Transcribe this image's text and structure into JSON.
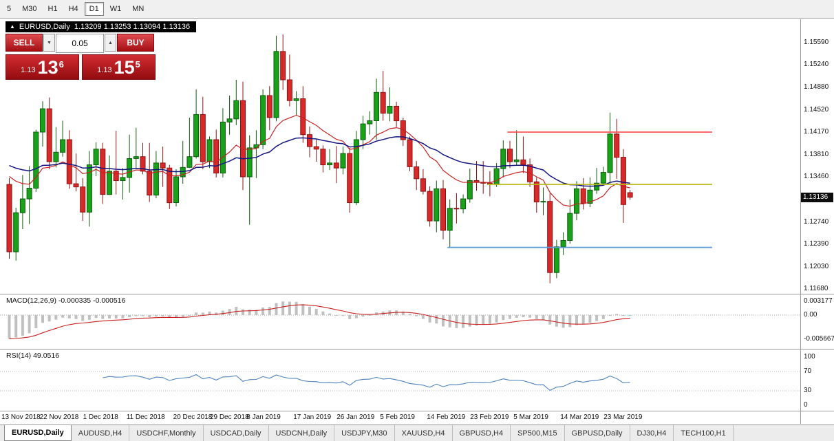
{
  "toolbar": {
    "timeframes": [
      {
        "label": "5",
        "active": false
      },
      {
        "label": "M30",
        "active": false
      },
      {
        "label": "H1",
        "active": false
      },
      {
        "label": "H4",
        "active": false
      },
      {
        "label": "D1",
        "active": true
      },
      {
        "label": "W1",
        "active": false
      },
      {
        "label": "MN",
        "active": false
      }
    ]
  },
  "chart": {
    "title_symbol": "EURUSD,Daily",
    "title_ohlc": "1.13209 1.13253 1.13094 1.13136"
  },
  "trade_panel": {
    "sell_label": "SELL",
    "buy_label": "BUY",
    "volume": "0.05",
    "sell_price": {
      "prefix": "1.13",
      "big": "13",
      "sup": "6"
    },
    "buy_price": {
      "prefix": "1.13",
      "big": "15",
      "sup": "5"
    }
  },
  "price_axis": {
    "current": "1.13136"
  },
  "macd": {
    "label": "MACD(12,26,9) -0.000335 -0.000516",
    "params": [
      12,
      26,
      9
    ],
    "axis": [
      "0.003177",
      "0.00",
      "-0.005667"
    ],
    "histogram_color": "#c0c0c0",
    "signal_color": "#c82020"
  },
  "rsi": {
    "label": "RSI(14) 49.0516",
    "period": 14,
    "value": 49.0516,
    "axis": [
      "100",
      "70",
      "30",
      "0"
    ],
    "levels": [
      70,
      30
    ],
    "line_color": "#4f81bd"
  },
  "tabs": [
    {
      "label": "EURUSD,Daily",
      "active": true
    },
    {
      "label": "AUDUSD,H4",
      "active": false
    },
    {
      "label": "USDCHF,Monthly",
      "active": false
    },
    {
      "label": "USDCAD,Daily",
      "active": false
    },
    {
      "label": "USDCNH,Daily",
      "active": false
    },
    {
      "label": "USDJPY,M30",
      "active": false
    },
    {
      "label": "XAUUSD,H4",
      "active": false
    },
    {
      "label": "GBPUSD,H4",
      "active": false
    },
    {
      "label": "SP500,M15",
      "active": false
    },
    {
      "label": "GBPUSD,Daily",
      "active": false
    },
    {
      "label": "DJ30,H4",
      "active": false
    },
    {
      "label": "TECH100,H1",
      "active": false
    }
  ],
  "chart_data": {
    "type": "candlestick",
    "symbol": "EURUSD",
    "period": "Daily",
    "ylim": [
      1.1168,
      1.1559
    ],
    "y_ticks": [
      "1.15590",
      "1.15240",
      "1.14880",
      "1.14520",
      "1.14170",
      "1.13810",
      "1.13460",
      "1.13100",
      "1.12740",
      "1.12390",
      "1.12030",
      "1.11680"
    ],
    "x_ticks": [
      {
        "label": "13 Nov 2018",
        "index": 1
      },
      {
        "label": "22 Nov 2018",
        "index": 8
      },
      {
        "label": "1 Dec 2018",
        "index": 14.5
      },
      {
        "label": "11 Dec 2018",
        "index": 21
      },
      {
        "label": "20 Dec 2018",
        "index": 28
      },
      {
        "label": "29 Dec 2018",
        "index": 33.5
      },
      {
        "label": "8 Jan 2019",
        "index": 39
      },
      {
        "label": "17 Jan 2019",
        "index": 46
      },
      {
        "label": "26 Jan 2019",
        "index": 52.5
      },
      {
        "label": "5 Feb 2019",
        "index": 59
      },
      {
        "label": "14 Feb 2019",
        "index": 66
      },
      {
        "label": "23 Feb 2019",
        "index": 72.5
      },
      {
        "label": "5 Mar 2019",
        "index": 79
      },
      {
        "label": "14 Mar 2019",
        "index": 86
      },
      {
        "label": "23 Mar 2019",
        "index": 92.5
      }
    ],
    "colors": {
      "up": {
        "body": "#19a119",
        "border": "#0b5d0b"
      },
      "down": {
        "body": "#d62929",
        "border": "#8f1010"
      }
    },
    "moving_averages": [
      {
        "name": "ma-fast",
        "period": 14,
        "color": "#c82020"
      },
      {
        "name": "ma-slow",
        "period": 35,
        "color": "#151580"
      }
    ],
    "hlines": [
      {
        "name": "resistance-hline",
        "price": 1.1417,
        "color": "#ff5252",
        "from_index": 75
      },
      {
        "name": "pivot-hline",
        "price": 1.1334,
        "color": "#b9b918",
        "from_index": 72
      },
      {
        "name": "support-hline",
        "price": 1.1234,
        "color": "#5b9bd5",
        "from_index": 66
      }
    ],
    "candles": [
      [
        1.1334,
        1.1344,
        1.1216,
        1.1227
      ],
      [
        1.1227,
        1.1297,
        1.1213,
        1.1289
      ],
      [
        1.1289,
        1.1349,
        1.1263,
        1.1311
      ],
      [
        1.1311,
        1.1363,
        1.1271,
        1.1328
      ],
      [
        1.1328,
        1.1421,
        1.1322,
        1.1417
      ],
      [
        1.1417,
        1.1466,
        1.1394,
        1.1454
      ],
      [
        1.1454,
        1.1472,
        1.1358,
        1.137
      ],
      [
        1.137,
        1.1425,
        1.1361,
        1.1385
      ],
      [
        1.1385,
        1.1435,
        1.1378,
        1.1405
      ],
      [
        1.1405,
        1.142,
        1.1327,
        1.1335
      ],
      [
        1.1335,
        1.1383,
        1.1323,
        1.133
      ],
      [
        1.133,
        1.1344,
        1.1276,
        1.129
      ],
      [
        1.129,
        1.1387,
        1.1267,
        1.1365
      ],
      [
        1.1365,
        1.1401,
        1.1347,
        1.139
      ],
      [
        1.139,
        1.14,
        1.1303,
        1.1318
      ],
      [
        1.1318,
        1.138,
        1.1318,
        1.1355
      ],
      [
        1.1355,
        1.1419,
        1.1318,
        1.134
      ],
      [
        1.134,
        1.136,
        1.131,
        1.1345
      ],
      [
        1.1345,
        1.1413,
        1.1321,
        1.1375
      ],
      [
        1.1375,
        1.1424,
        1.136,
        1.1378
      ],
      [
        1.1378,
        1.14,
        1.135,
        1.1355
      ],
      [
        1.1355,
        1.14,
        1.1306,
        1.1317
      ],
      [
        1.1317,
        1.1387,
        1.1312,
        1.1368
      ],
      [
        1.1368,
        1.1394,
        1.133,
        1.136
      ],
      [
        1.136,
        1.1365,
        1.1295,
        1.1305
      ],
      [
        1.1305,
        1.1358,
        1.1299,
        1.1346
      ],
      [
        1.1346,
        1.1403,
        1.1335,
        1.1361
      ],
      [
        1.1361,
        1.144,
        1.136,
        1.1378
      ],
      [
        1.1378,
        1.1485,
        1.1375,
        1.1445
      ],
      [
        1.1445,
        1.1473,
        1.1358,
        1.137
      ],
      [
        1.137,
        1.141,
        1.136,
        1.1405
      ],
      [
        1.1405,
        1.1421,
        1.1345,
        1.1352
      ],
      [
        1.1352,
        1.1455,
        1.1345,
        1.1433
      ],
      [
        1.1433,
        1.1475,
        1.1413,
        1.1438
      ],
      [
        1.1438,
        1.15,
        1.1428,
        1.1467
      ],
      [
        1.1467,
        1.1497,
        1.1325,
        1.1346
      ],
      [
        1.1346,
        1.1412,
        1.127,
        1.1392
      ],
      [
        1.1392,
        1.142,
        1.1344,
        1.1397
      ],
      [
        1.1397,
        1.1485,
        1.139,
        1.1475
      ],
      [
        1.1475,
        1.149,
        1.142,
        1.144
      ],
      [
        1.144,
        1.157,
        1.1434,
        1.1545
      ],
      [
        1.1545,
        1.1572,
        1.1484,
        1.15
      ],
      [
        1.15,
        1.154,
        1.1458,
        1.1467
      ],
      [
        1.1467,
        1.1482,
        1.1444,
        1.147
      ],
      [
        1.147,
        1.149,
        1.14,
        1.1413
      ],
      [
        1.1413,
        1.1426,
        1.1377,
        1.1394
      ],
      [
        1.1394,
        1.1405,
        1.137,
        1.139
      ],
      [
        1.139,
        1.1396,
        1.1353,
        1.1365
      ],
      [
        1.1365,
        1.139,
        1.1357,
        1.1368
      ],
      [
        1.1368,
        1.1395,
        1.1336,
        1.136
      ],
      [
        1.136,
        1.1394,
        1.135,
        1.1383
      ],
      [
        1.1383,
        1.1392,
        1.1289,
        1.1305
      ],
      [
        1.1305,
        1.1419,
        1.1301,
        1.1405
      ],
      [
        1.1405,
        1.1443,
        1.139,
        1.143
      ],
      [
        1.143,
        1.145,
        1.1413,
        1.1435
      ],
      [
        1.1435,
        1.1502,
        1.1405,
        1.148
      ],
      [
        1.148,
        1.1514,
        1.1435,
        1.1447
      ],
      [
        1.1447,
        1.1488,
        1.1434,
        1.1458
      ],
      [
        1.1458,
        1.1465,
        1.1425,
        1.1435
      ],
      [
        1.1435,
        1.144,
        1.1395,
        1.1405
      ],
      [
        1.1405,
        1.141,
        1.1355,
        1.1362
      ],
      [
        1.1362,
        1.1371,
        1.1325,
        1.1343
      ],
      [
        1.1343,
        1.1358,
        1.1318,
        1.1323
      ],
      [
        1.1323,
        1.1331,
        1.1267,
        1.1276
      ],
      [
        1.1276,
        1.134,
        1.1258,
        1.1327
      ],
      [
        1.1327,
        1.1341,
        1.1247,
        1.1261
      ],
      [
        1.1261,
        1.131,
        1.1234,
        1.1296
      ],
      [
        1.1296,
        1.132,
        1.1272,
        1.1295
      ],
      [
        1.1295,
        1.1318,
        1.1288,
        1.1311
      ],
      [
        1.1311,
        1.1359,
        1.1305,
        1.134
      ],
      [
        1.134,
        1.1371,
        1.1324,
        1.1337
      ],
      [
        1.1337,
        1.1371,
        1.1319,
        1.1336
      ],
      [
        1.1336,
        1.1355,
        1.1315,
        1.1334
      ],
      [
        1.1334,
        1.1368,
        1.133,
        1.1359
      ],
      [
        1.1359,
        1.1404,
        1.1345,
        1.139
      ],
      [
        1.139,
        1.1403,
        1.136,
        1.137
      ],
      [
        1.137,
        1.142,
        1.1365,
        1.1373
      ],
      [
        1.1373,
        1.141,
        1.1352,
        1.1365
      ],
      [
        1.1365,
        1.1375,
        1.133,
        1.1338
      ],
      [
        1.1338,
        1.1345,
        1.1289,
        1.1306
      ],
      [
        1.1306,
        1.1329,
        1.1285,
        1.1307
      ],
      [
        1.1307,
        1.132,
        1.1177,
        1.1194
      ],
      [
        1.1194,
        1.1246,
        1.1185,
        1.1235
      ],
      [
        1.1235,
        1.1258,
        1.1222,
        1.1245
      ],
      [
        1.1245,
        1.131,
        1.124,
        1.1288
      ],
      [
        1.1288,
        1.1339,
        1.1277,
        1.1327
      ],
      [
        1.1327,
        1.1344,
        1.1294,
        1.1304
      ],
      [
        1.1304,
        1.1345,
        1.1298,
        1.1325
      ],
      [
        1.1325,
        1.136,
        1.1319,
        1.1336
      ],
      [
        1.1336,
        1.1362,
        1.1335,
        1.1353
      ],
      [
        1.1353,
        1.1448,
        1.1335,
        1.1414
      ],
      [
        1.1414,
        1.1438,
        1.1343,
        1.1377
      ],
      [
        1.1377,
        1.139,
        1.1273,
        1.1302
      ],
      [
        1.13209,
        1.13253,
        1.13094,
        1.13136
      ]
    ]
  }
}
